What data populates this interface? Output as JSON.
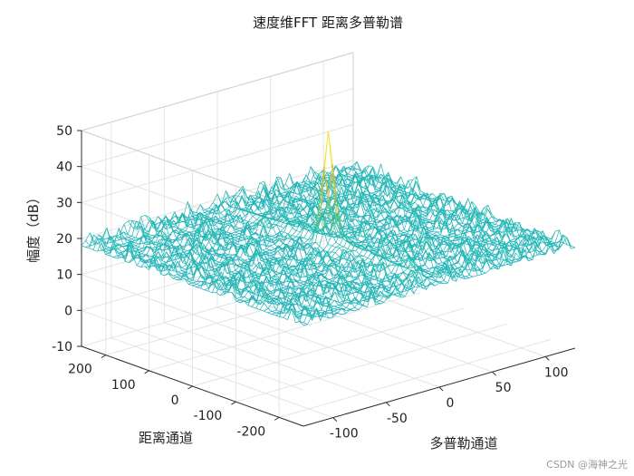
{
  "chart_data": {
    "type": "surface",
    "title": "速度维FFT 距离多普勒谱",
    "xlabel": "多普勒通道",
    "ylabel": "距离通道",
    "zlabel": "幅度（dB）",
    "x_range": [
      -128,
      128
    ],
    "y_range": [
      -256,
      256
    ],
    "zlim": [
      -10,
      50
    ],
    "x_ticks": [
      -100,
      -50,
      0,
      50,
      100
    ],
    "y_ticks": [
      -200,
      -100,
      0,
      100,
      200
    ],
    "z_ticks": [
      -10,
      0,
      10,
      20,
      30,
      40,
      50
    ],
    "x_tick_labels": [
      "-100",
      "-50",
      "0",
      "50",
      "100"
    ],
    "y_tick_labels": [
      "-200",
      "-100",
      "0",
      "100",
      "200"
    ],
    "z_tick_labels": [
      "-10",
      "0",
      "10",
      "20",
      "30",
      "40",
      "50"
    ],
    "noise_floor_db": 18,
    "peak": {
      "x": 0,
      "y": 0,
      "z": 45
    },
    "colormap": "parula",
    "grid": true
  },
  "watermark": "CSDN @海神之光"
}
